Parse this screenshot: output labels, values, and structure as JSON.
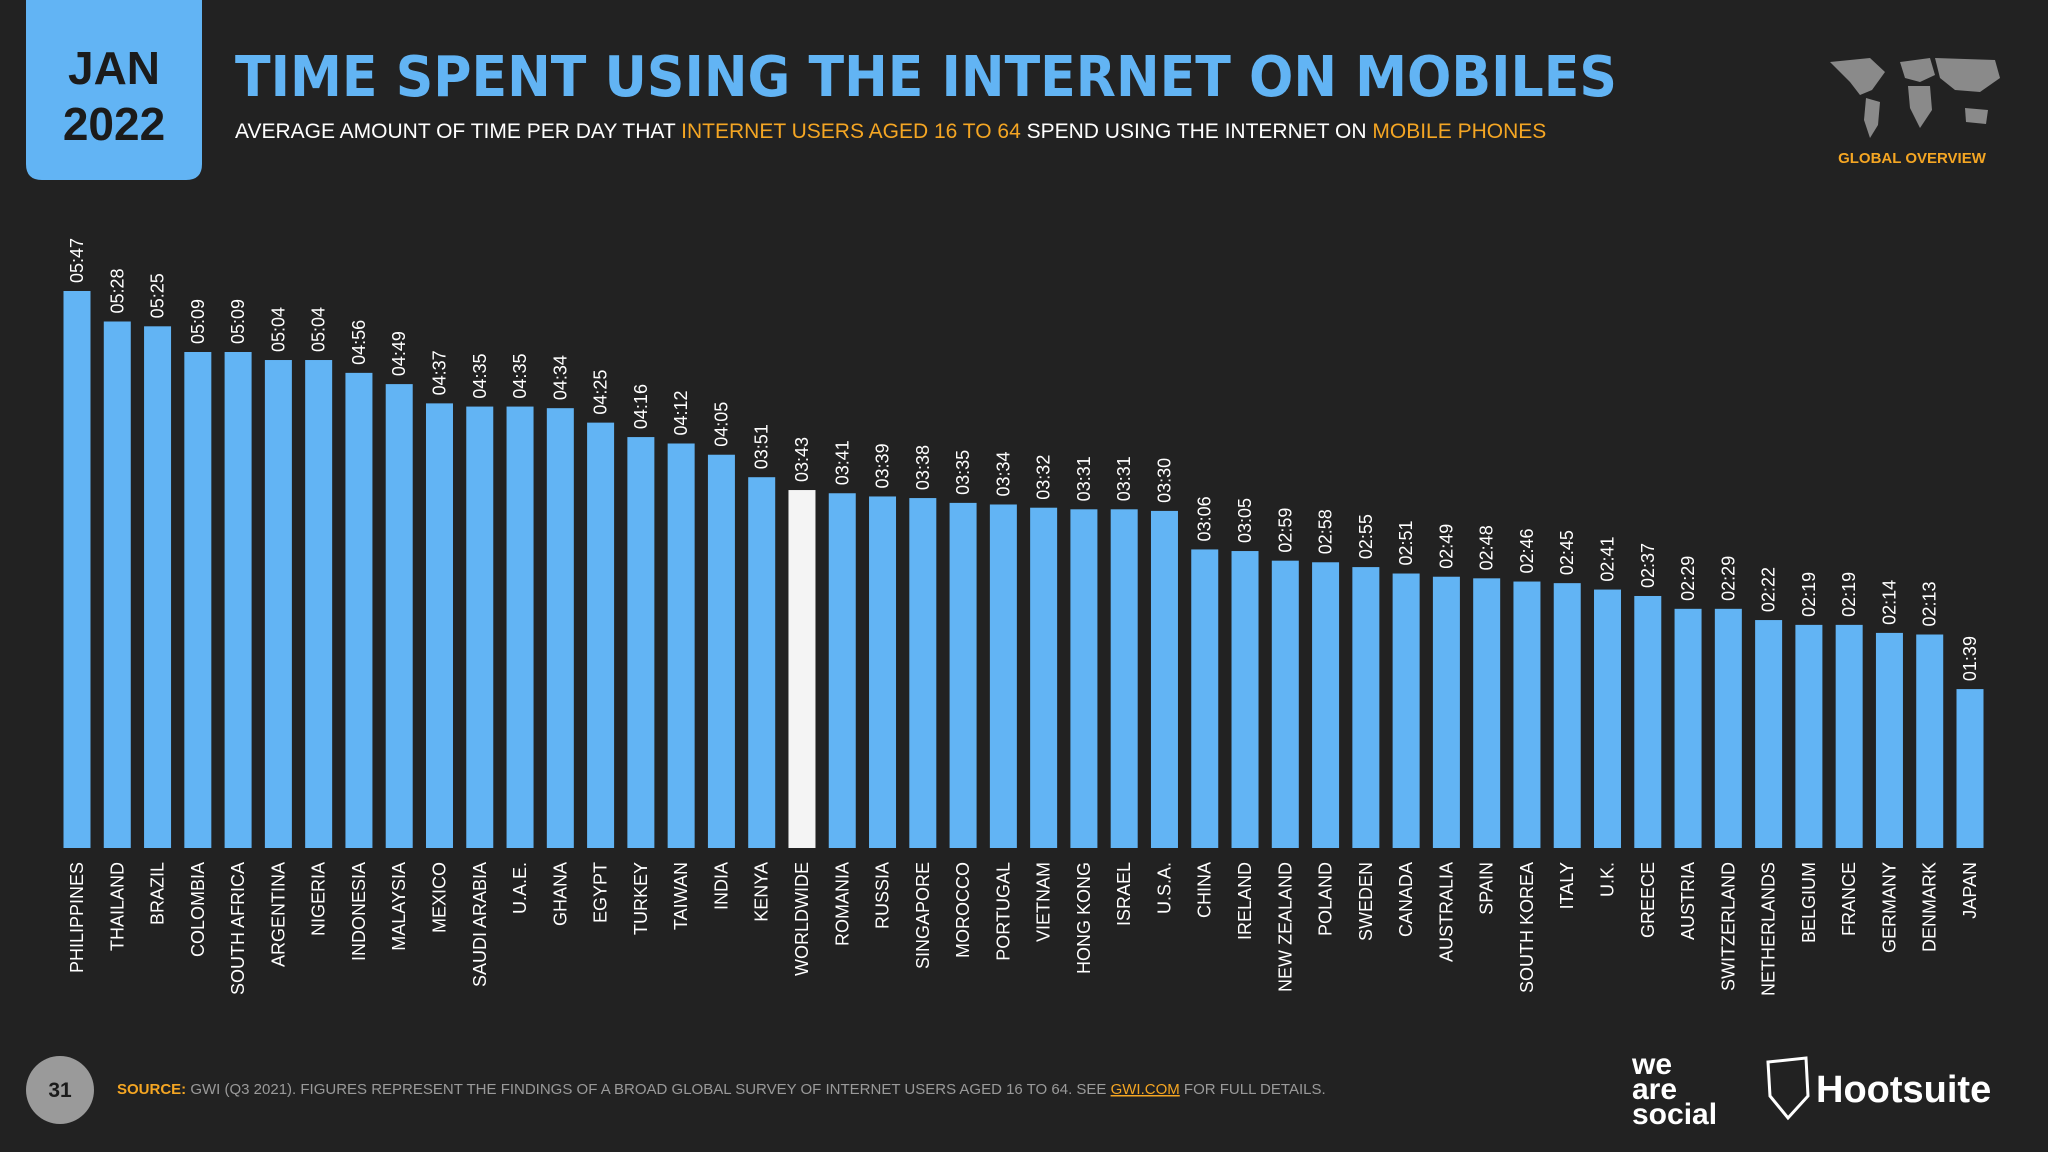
{
  "header": {
    "date_month": "JAN",
    "date_year": "2022",
    "title": "TIME SPENT USING THE INTERNET ON MOBILES",
    "subtitle": [
      "AVERAGE AMOUNT OF TIME PER DAY THAT ",
      "INTERNET USERS AGED 16 TO 64",
      " SPEND USING THE INTERNET ON ",
      "MOBILE PHONES"
    ],
    "section": "GLOBAL OVERVIEW"
  },
  "chart_data": {
    "type": "bar",
    "categories": [
      "PHILIPPINES",
      "THAILAND",
      "BRAZIL",
      "COLOMBIA",
      "SOUTH AFRICA",
      "ARGENTINA",
      "NIGERIA",
      "INDONESIA",
      "MALAYSIA",
      "MEXICO",
      "SAUDI ARABIA",
      "U.A.E.",
      "GHANA",
      "EGYPT",
      "TURKEY",
      "TAIWAN",
      "INDIA",
      "KENYA",
      "WORLDWIDE",
      "ROMANIA",
      "RUSSIA",
      "SINGAPORE",
      "MOROCCO",
      "PORTUGAL",
      "VIETNAM",
      "HONG KONG",
      "ISRAEL",
      "U.S.A.",
      "CHINA",
      "IRELAND",
      "NEW ZEALAND",
      "POLAND",
      "SWEDEN",
      "CANADA",
      "AUSTRALIA",
      "SPAIN",
      "SOUTH KOREA",
      "ITALY",
      "U.K.",
      "GREECE",
      "AUSTRIA",
      "SWITZERLAND",
      "NETHERLANDS",
      "BELGIUM",
      "FRANCE",
      "GERMANY",
      "DENMARK",
      "JAPAN"
    ],
    "values": [
      347,
      328,
      325,
      309,
      309,
      304,
      304,
      296,
      289,
      277,
      275,
      275,
      274,
      265,
      256,
      252,
      245,
      231,
      223,
      221,
      219,
      218,
      215,
      214,
      212,
      211,
      211,
      210,
      186,
      185,
      179,
      178,
      175,
      171,
      169,
      168,
      166,
      165,
      161,
      157,
      149,
      149,
      142,
      139,
      139,
      134,
      133,
      99
    ],
    "value_labels": [
      "05:47",
      "05:28",
      "05:25",
      "05:09",
      "05:09",
      "05:04",
      "05:04",
      "04:56",
      "04:49",
      "04:37",
      "04:35",
      "04:35",
      "04:34",
      "04:25",
      "04:16",
      "04:12",
      "04:05",
      "03:51",
      "03:43",
      "03:41",
      "03:39",
      "03:38",
      "03:35",
      "03:34",
      "03:32",
      "03:31",
      "03:31",
      "03:30",
      "03:06",
      "03:05",
      "02:59",
      "02:58",
      "02:55",
      "02:51",
      "02:49",
      "02:48",
      "02:46",
      "02:45",
      "02:41",
      "02:37",
      "02:29",
      "02:29",
      "02:22",
      "02:19",
      "02:19",
      "02:14",
      "02:13",
      "01:39"
    ],
    "colors": [
      "#62b4f4",
      "#62b4f4",
      "#62b4f4",
      "#62b4f4",
      "#62b4f4",
      "#62b4f4",
      "#62b4f4",
      "#62b4f4",
      "#62b4f4",
      "#62b4f4",
      "#62b4f4",
      "#62b4f4",
      "#62b4f4",
      "#62b4f4",
      "#62b4f4",
      "#62b4f4",
      "#62b4f4",
      "#62b4f4",
      "#f4f4f4",
      "#62b4f4",
      "#62b4f4",
      "#62b4f4",
      "#62b4f4",
      "#62b4f4",
      "#62b4f4",
      "#62b4f4",
      "#62b4f4",
      "#62b4f4",
      "#62b4f4",
      "#62b4f4",
      "#62b4f4",
      "#62b4f4",
      "#62b4f4",
      "#62b4f4",
      "#62b4f4",
      "#62b4f4",
      "#62b4f4",
      "#62b4f4",
      "#62b4f4",
      "#62b4f4",
      "#62b4f4",
      "#62b4f4",
      "#62b4f4",
      "#62b4f4",
      "#62b4f4",
      "#62b4f4",
      "#62b4f4",
      "#62b4f4"
    ]
  },
  "footer": {
    "page": "31",
    "source": [
      "SOURCE:",
      " GWI (Q3 2021). FIGURES REPRESENT THE FINDINGS OF A BROAD GLOBAL SURVEY OF INTERNET USERS AGED 16 TO 64. SEE ",
      "GWI.COM",
      " FOR FULL DETAILS."
    ],
    "logos": [
      "we",
      "are",
      "social",
      "Hootsuite"
    ]
  }
}
